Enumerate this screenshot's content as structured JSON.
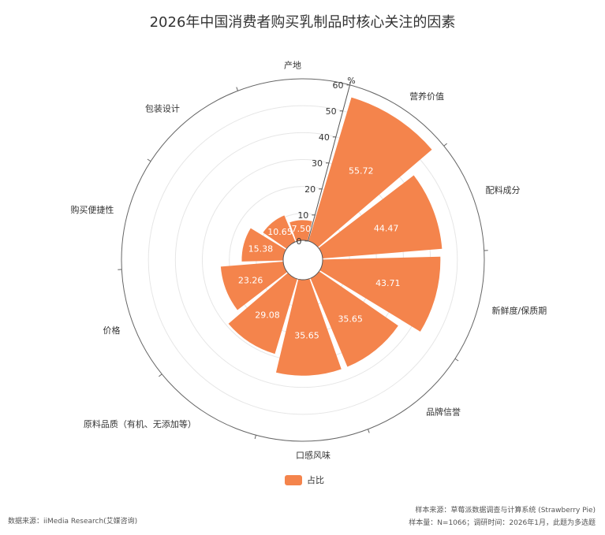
{
  "chart_data": {
    "type": "bar",
    "subtype": "polar-bar",
    "title": "2026年中国消费者购买乳制品时核心关注的因素",
    "unit": "%",
    "radial_ticks": [
      0,
      10,
      20,
      30,
      40,
      50,
      60
    ],
    "ylim": [
      0,
      60
    ],
    "categories": [
      "营养价值",
      "配料成分",
      "新鲜度/保质期",
      "品牌信誉",
      "口感风味",
      "原料品质（有机、无添加等）",
      "价格",
      "购买便捷性",
      "包装设计",
      "产地"
    ],
    "series": [
      {
        "name": "占比",
        "values": [
          55.72,
          44.47,
          43.71,
          35.65,
          35.65,
          29.08,
          23.26,
          15.38,
          10.65,
          7.5
        ]
      }
    ],
    "value_labels": [
      "55.72",
      "44.47",
      "43.71",
      "35.65",
      "35.65",
      "29.08",
      "23.26",
      "15.38",
      "10.65",
      "7.50"
    ],
    "color": "#f4844c",
    "legend_position": "bottom"
  },
  "footer": {
    "source_left": "数据来源：iiMedia Research(艾媒咨询)",
    "sample_source": "样本来源：草莓派数据调查与计算系统 (Strawberry Pie)",
    "sample_info": "样本量：N=1066；调研时间：2026年1月，此题为多选题"
  }
}
